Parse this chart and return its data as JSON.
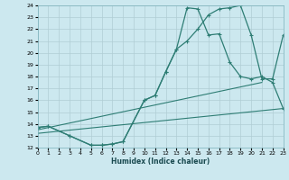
{
  "xlabel": "Humidex (Indice chaleur)",
  "bg_color": "#cce8ef",
  "grid_color": "#b0cdd4",
  "line_color": "#2e7d74",
  "xlim": [
    0,
    23
  ],
  "ylim": [
    12,
    24
  ],
  "xticks": [
    0,
    1,
    2,
    3,
    4,
    5,
    6,
    7,
    8,
    9,
    10,
    11,
    12,
    13,
    14,
    15,
    16,
    17,
    18,
    19,
    20,
    21,
    22,
    23
  ],
  "yticks": [
    12,
    13,
    14,
    15,
    16,
    17,
    18,
    19,
    20,
    21,
    22,
    23,
    24
  ],
  "curve1_x": [
    0,
    1,
    3,
    5,
    6,
    7,
    8,
    10,
    11,
    12,
    13,
    14,
    15,
    16,
    17,
    18,
    19,
    20,
    21,
    22,
    23
  ],
  "curve1_y": [
    13.7,
    13.8,
    13.0,
    12.2,
    12.2,
    12.3,
    12.5,
    16.0,
    16.4,
    18.4,
    20.3,
    23.8,
    23.7,
    21.5,
    21.6,
    19.2,
    18.0,
    17.8,
    18.0,
    17.5,
    15.3
  ],
  "curve2_x": [
    0,
    1,
    3,
    5,
    6,
    7,
    8,
    10,
    11,
    12,
    13,
    14,
    15,
    16,
    17,
    18,
    19,
    20,
    21,
    22,
    23
  ],
  "curve2_y": [
    13.7,
    13.8,
    13.0,
    12.2,
    12.2,
    12.3,
    12.5,
    16.0,
    16.4,
    18.4,
    20.3,
    21.0,
    22.0,
    23.2,
    23.7,
    23.8,
    24.0,
    21.5,
    17.8,
    17.8,
    21.5
  ],
  "line1_x": [
    0,
    21
  ],
  "line1_y": [
    13.5,
    17.5
  ],
  "line2_x": [
    0,
    23
  ],
  "line2_y": [
    13.2,
    15.3
  ]
}
